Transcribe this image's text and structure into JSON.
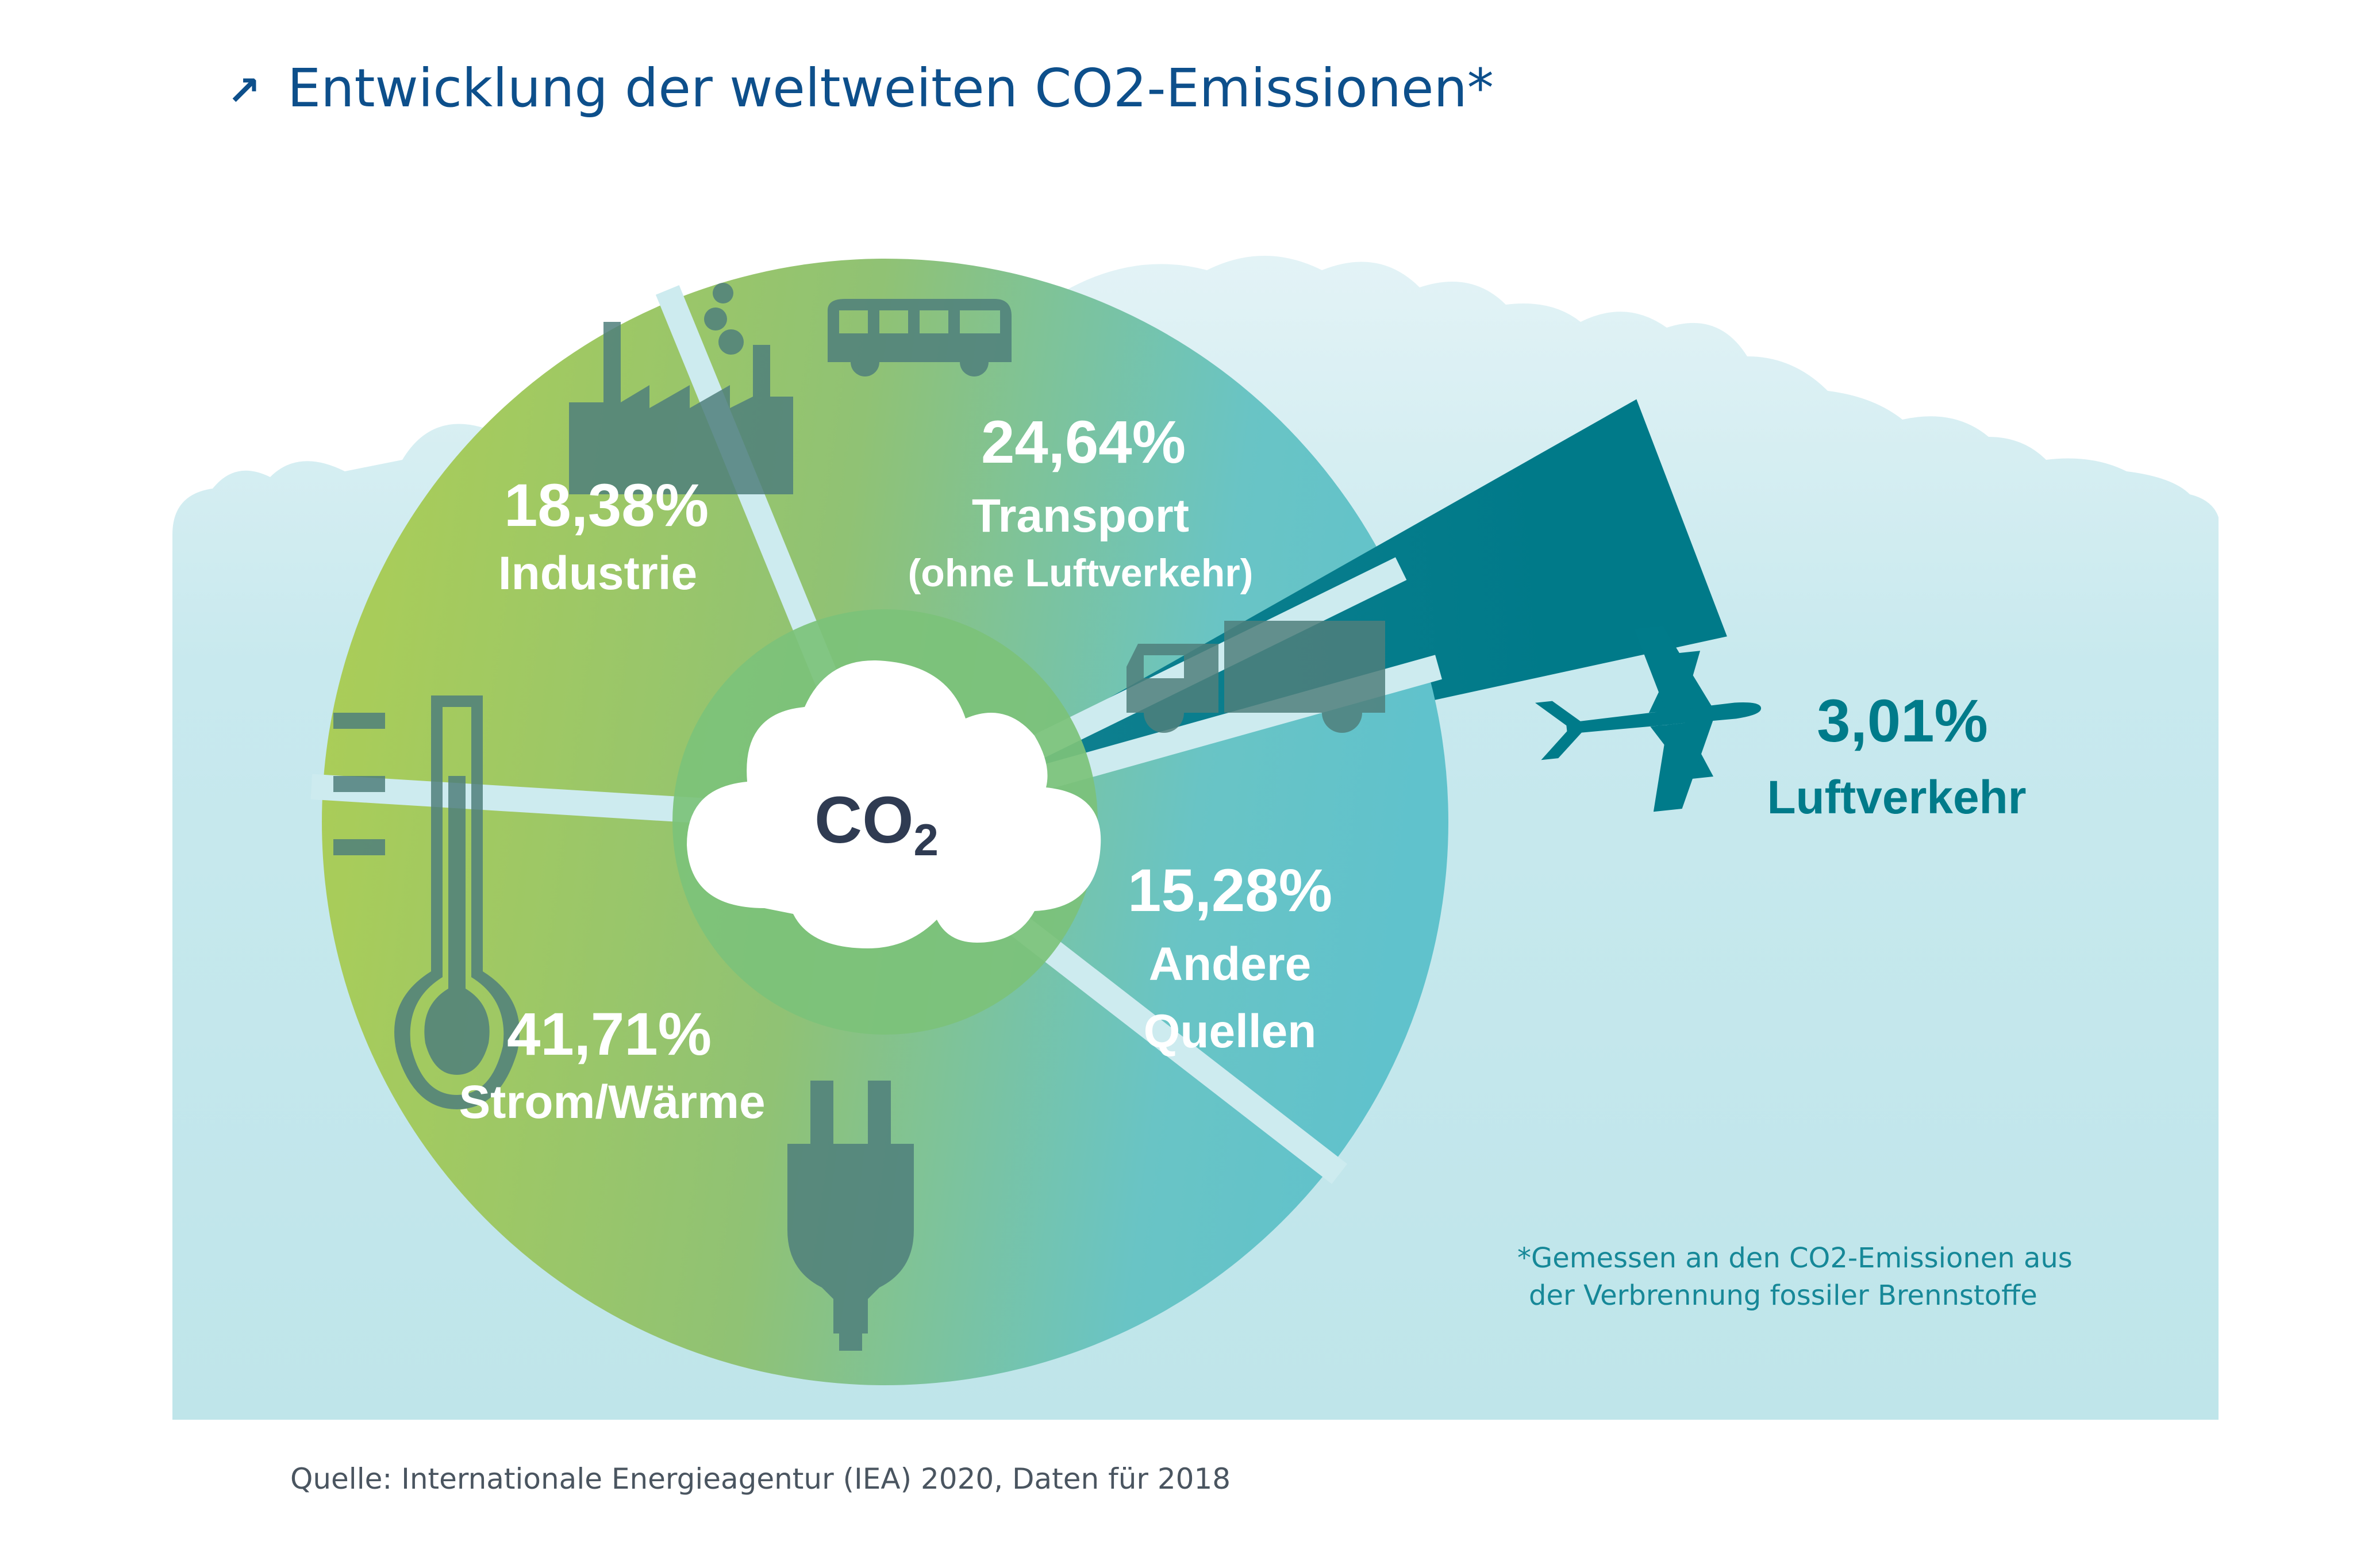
{
  "colors": {
    "title": "#0d4f8b",
    "sky": "#c2e7ec",
    "cloud_light": "#dff1f4",
    "green_light": "#a8cc5a",
    "green_mid": "#8fc16e",
    "teal": "#67c3c9",
    "center": "#7cc27a",
    "icon": "#4f7f7b",
    "label_white": "#ffffff",
    "air_dark": "#007b8a",
    "co2_text": "#2f3b52",
    "footnote": "#168898",
    "source": "#4a5560"
  },
  "header": {
    "arrow_glyph": "↗",
    "title": "Entwicklung der weltweiten CO2-Emissionen*"
  },
  "center": {
    "label_main": "CO",
    "label_sub": "2"
  },
  "chart_data": {
    "type": "pie",
    "unit": "%",
    "slices": [
      {
        "id": "industrie",
        "pct_label": "18,38%",
        "name": "Industrie",
        "subtitle": "",
        "value": 18.38,
        "icons": [
          "factory-icon"
        ]
      },
      {
        "id": "transport",
        "pct_label": "24,64%",
        "name": "Transport",
        "subtitle": "(ohne Luftverkehr)",
        "value": 24.64,
        "icons": [
          "bus-icon",
          "truck-icon"
        ]
      },
      {
        "id": "luftverkehr",
        "pct_label": "3,01%",
        "name": "Luftverkehr",
        "subtitle": "",
        "value": 3.01,
        "icons": [
          "airplane-icon"
        ]
      },
      {
        "id": "andere",
        "pct_label": "15,28%",
        "name": "Andere",
        "subtitle": "Quellen",
        "value": 15.28,
        "icons": []
      },
      {
        "id": "strom",
        "pct_label": "41,71%",
        "name": "Strom/Wärme",
        "subtitle": "",
        "value": 41.71,
        "icons": [
          "thermometer-icon",
          "plug-icon"
        ]
      }
    ]
  },
  "footnote": {
    "line1": "*Gemessen an den CO2-Emissionen aus",
    "line2": "der Verbrennung fossiler Brennstoffe"
  },
  "source": "Quelle: Internationale Energieagentur (IEA) 2020, Daten für 2018"
}
